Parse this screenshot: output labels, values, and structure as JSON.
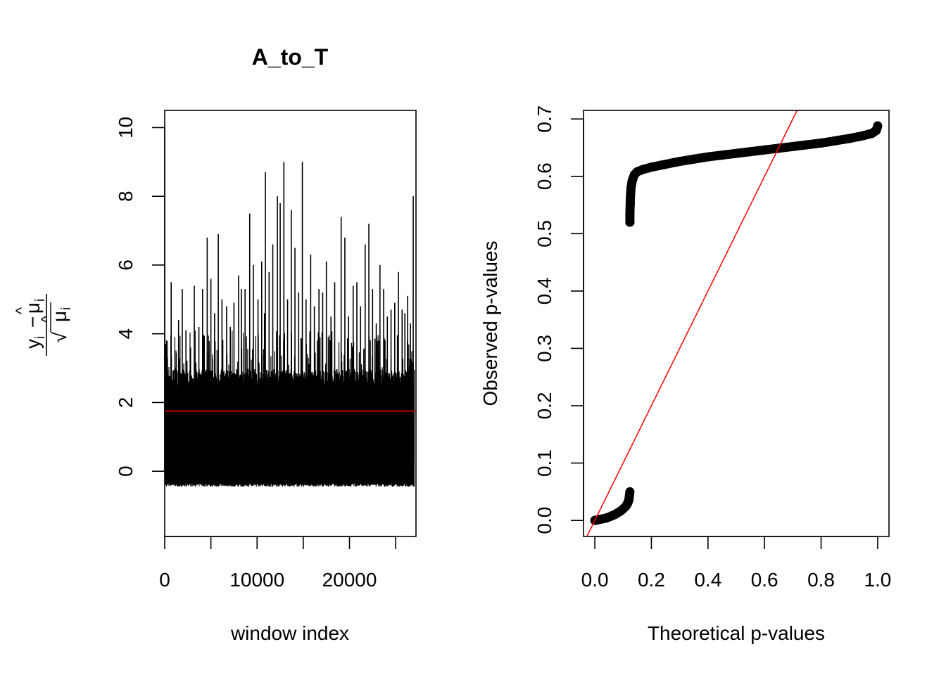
{
  "chart_data": [
    {
      "type": "line",
      "title": "A_to_T",
      "xlabel": "window index",
      "ylabel_expression": {
        "numerator_y": "y",
        "numerator_sub": "i",
        "minus": "−",
        "mu": "μ",
        "hat": "^",
        "mu_sub": "i",
        "sqrt": "√"
      },
      "xlim": [
        0,
        27200
      ],
      "ylim": [
        -1.9,
        10.5
      ],
      "xticks": [
        0,
        10000,
        20000
      ],
      "xtick_labels": [
        "0",
        "10000",
        "20000"
      ],
      "yticks": [
        0,
        2,
        4,
        6,
        8,
        10
      ],
      "ytick_labels": [
        "0",
        "2",
        "4",
        "6",
        "8",
        "10"
      ],
      "n_windows": 27000,
      "series_color": "#000000",
      "baseline": -0.45,
      "dense_band_top": 2.5,
      "spikes": [
        [
          100,
          3.7
        ],
        [
          300,
          3.3
        ],
        [
          700,
          5.5
        ],
        [
          1200,
          3.0
        ],
        [
          1500,
          4.4
        ],
        [
          1900,
          5.3
        ],
        [
          2300,
          4.1
        ],
        [
          2800,
          3.6
        ],
        [
          3200,
          5.4
        ],
        [
          3700,
          4.2
        ],
        [
          4100,
          5.3
        ],
        [
          4600,
          6.8
        ],
        [
          5000,
          5.6
        ],
        [
          5400,
          4.6
        ],
        [
          5800,
          6.9
        ],
        [
          6200,
          5.0
        ],
        [
          6700,
          4.8
        ],
        [
          7100,
          4.2
        ],
        [
          7500,
          4.9
        ],
        [
          8000,
          5.7
        ],
        [
          8300,
          5.3
        ],
        [
          8700,
          5.3
        ],
        [
          9200,
          7.5
        ],
        [
          9600,
          6.0
        ],
        [
          10100,
          5.0
        ],
        [
          10500,
          6.1
        ],
        [
          10800,
          4.6
        ],
        [
          10900,
          8.7
        ],
        [
          11300,
          5.8
        ],
        [
          11700,
          6.6
        ],
        [
          12200,
          8.0
        ],
        [
          12500,
          7.8
        ],
        [
          12900,
          9.0
        ],
        [
          13300,
          5.0
        ],
        [
          13700,
          7.6
        ],
        [
          14100,
          6.5
        ],
        [
          14500,
          5.2
        ],
        [
          14900,
          9.0
        ],
        [
          15300,
          5.0
        ],
        [
          15800,
          6.3
        ],
        [
          16200,
          4.8
        ],
        [
          16700,
          5.3
        ],
        [
          17100,
          5.2
        ],
        [
          17500,
          6.1
        ],
        [
          18000,
          4.5
        ],
        [
          18400,
          5.5
        ],
        [
          19100,
          7.4
        ],
        [
          19500,
          6.8
        ],
        [
          19900,
          4.5
        ],
        [
          20400,
          5.4
        ],
        [
          20800,
          5.5
        ],
        [
          21200,
          4.8
        ],
        [
          21700,
          6.6
        ],
        [
          22100,
          7.2
        ],
        [
          22500,
          5.3
        ],
        [
          22900,
          4.3
        ],
        [
          23300,
          6.0
        ],
        [
          23700,
          5.3
        ],
        [
          24100,
          4.5
        ],
        [
          24500,
          4.7
        ],
        [
          24900,
          4.9
        ],
        [
          25300,
          5.8
        ],
        [
          25700,
          4.7
        ],
        [
          26000,
          4.6
        ],
        [
          26300,
          5.1
        ],
        [
          26600,
          4.3
        ],
        [
          26900,
          8.0
        ]
      ],
      "reference_line": {
        "y": 1.75,
        "color": "#ff0000"
      }
    },
    {
      "type": "scatter",
      "xlabel": "Theoretical p-values",
      "ylabel": "Observed p-values",
      "xlim": [
        -0.04,
        1.04
      ],
      "ylim": [
        -0.028,
        0.715
      ],
      "xticks": [
        0.0,
        0.2,
        0.4,
        0.6,
        0.8,
        1.0
      ],
      "xtick_labels": [
        "0.0",
        "0.2",
        "0.4",
        "0.6",
        "0.8",
        "1.0"
      ],
      "yticks": [
        0.0,
        0.1,
        0.2,
        0.3,
        0.4,
        0.5,
        0.6,
        0.7
      ],
      "ytick_labels": [
        "0.0",
        "0.1",
        "0.2",
        "0.3",
        "0.4",
        "0.5",
        "0.6",
        "0.7"
      ],
      "point_color": "#000000",
      "points": [
        [
          0.0,
          0.0
        ],
        [
          0.01,
          0.001
        ],
        [
          0.02,
          0.002
        ],
        [
          0.03,
          0.003
        ],
        [
          0.04,
          0.004
        ],
        [
          0.05,
          0.006
        ],
        [
          0.06,
          0.008
        ],
        [
          0.07,
          0.01
        ],
        [
          0.08,
          0.013
        ],
        [
          0.09,
          0.016
        ],
        [
          0.1,
          0.02
        ],
        [
          0.11,
          0.025
        ],
        [
          0.115,
          0.029
        ],
        [
          0.12,
          0.035
        ],
        [
          0.122,
          0.042
        ],
        [
          0.124,
          0.05
        ],
        [
          0.124,
          0.52
        ],
        [
          0.124,
          0.535
        ],
        [
          0.125,
          0.55
        ],
        [
          0.126,
          0.565
        ],
        [
          0.128,
          0.58
        ],
        [
          0.132,
          0.592
        ],
        [
          0.14,
          0.603
        ],
        [
          0.15,
          0.608
        ],
        [
          0.17,
          0.612
        ],
        [
          0.2,
          0.616
        ],
        [
          0.25,
          0.621
        ],
        [
          0.3,
          0.626
        ],
        [
          0.35,
          0.63
        ],
        [
          0.4,
          0.634
        ],
        [
          0.45,
          0.637
        ],
        [
          0.5,
          0.64
        ],
        [
          0.55,
          0.643
        ],
        [
          0.6,
          0.646
        ],
        [
          0.65,
          0.649
        ],
        [
          0.7,
          0.652
        ],
        [
          0.75,
          0.655
        ],
        [
          0.8,
          0.658
        ],
        [
          0.85,
          0.662
        ],
        [
          0.9,
          0.666
        ],
        [
          0.95,
          0.671
        ],
        [
          0.98,
          0.675
        ],
        [
          0.995,
          0.68
        ],
        [
          1.0,
          0.688
        ]
      ],
      "reference_line": {
        "slope": 1,
        "intercept": 0,
        "color": "#ff0000"
      }
    }
  ]
}
